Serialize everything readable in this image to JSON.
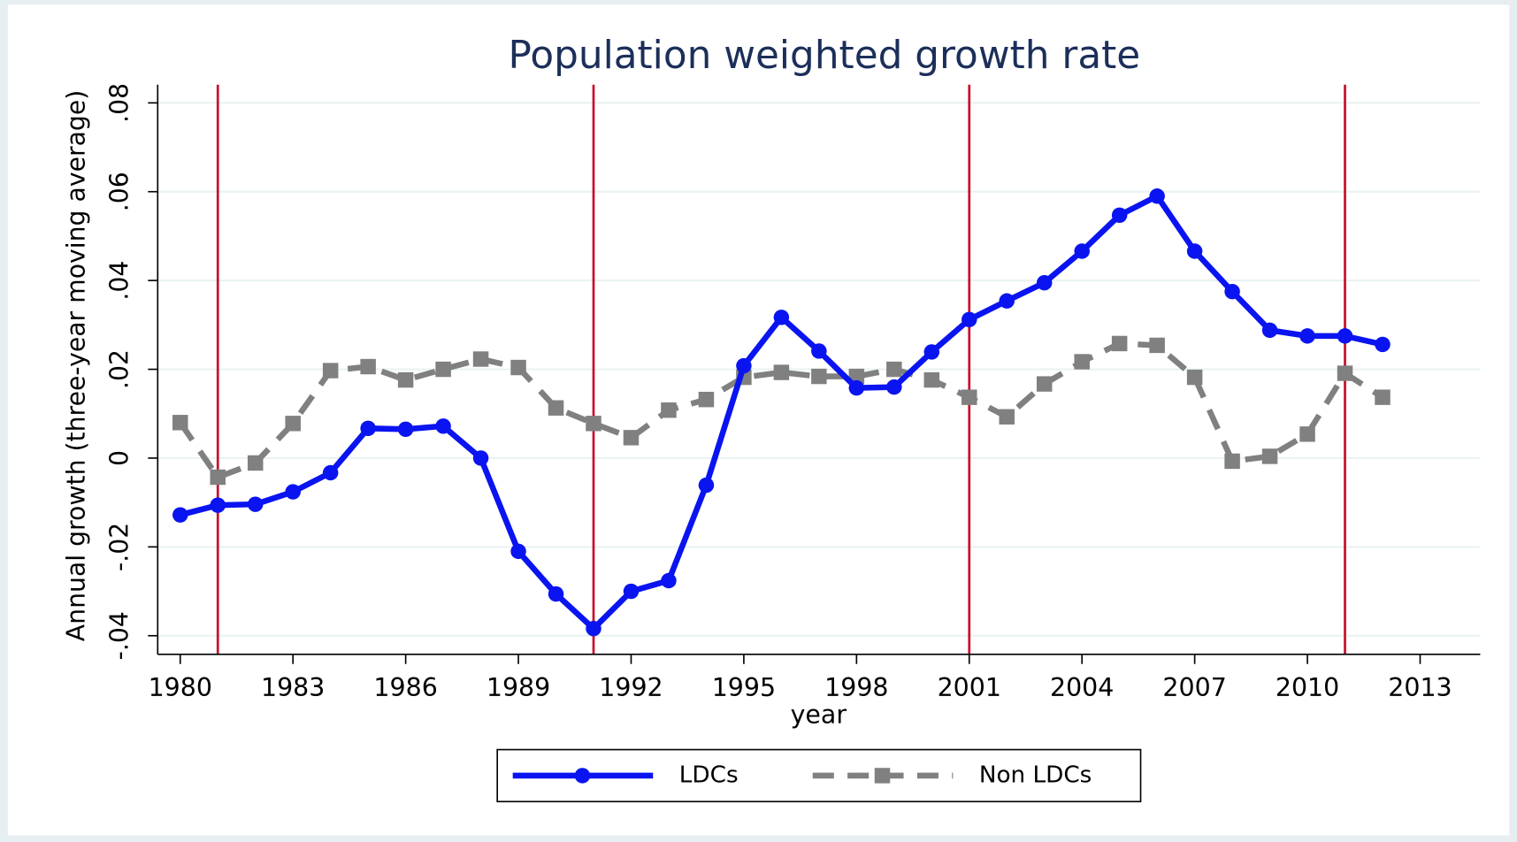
{
  "chart_data": {
    "type": "line",
    "title": "Population weighted growth rate",
    "x_label": "year",
    "y_label": "Annual growth (three-year moving average)",
    "x": [
      1980,
      1981,
      1982,
      1983,
      1984,
      1985,
      1986,
      1987,
      1988,
      1989,
      1990,
      1991,
      1992,
      1993,
      1994,
      1995,
      1996,
      1997,
      1998,
      1999,
      2000,
      2001,
      2002,
      2003,
      2004,
      2005,
      2006,
      2007,
      2008,
      2009,
      2010,
      2011,
      2012
    ],
    "series": [
      {
        "name": "LDCs",
        "color": "#0a14f0",
        "marker": "circle",
        "dash": false,
        "values": [
          -0.0128,
          -0.0106,
          -0.0104,
          -0.0076,
          -0.0033,
          0.0067,
          0.0065,
          0.0072,
          0.0,
          -0.021,
          -0.0306,
          -0.0384,
          -0.03,
          -0.0276,
          -0.0061,
          0.0208,
          0.0317,
          0.0241,
          0.0158,
          0.016,
          0.0239,
          0.0312,
          0.0354,
          0.0395,
          0.0466,
          0.0547,
          0.059,
          0.0466,
          0.0375,
          0.0288,
          0.0275,
          0.0275,
          0.0256
        ]
      },
      {
        "name": "Non LDCs",
        "color": "#808080",
        "marker": "square",
        "dash": true,
        "values": [
          0.008,
          -0.0043,
          -0.0011,
          0.0078,
          0.0197,
          0.0206,
          0.0176,
          0.02,
          0.0223,
          0.0204,
          0.0113,
          0.0078,
          0.0046,
          0.0108,
          0.0132,
          0.0182,
          0.0193,
          0.0184,
          0.0184,
          0.02,
          0.0176,
          0.0137,
          0.0093,
          0.0167,
          0.0217,
          0.0258,
          0.0254,
          0.0182,
          -0.0007,
          0.0004,
          0.0054,
          0.0191,
          0.0137
        ]
      }
    ],
    "xlim": [
      1979.4,
      2014.6
    ],
    "xticks": [
      1980,
      1983,
      1986,
      1989,
      1992,
      1995,
      1998,
      2001,
      2004,
      2007,
      2010,
      2013
    ],
    "ylim": [
      -0.0442,
      0.0841
    ],
    "yticks": [
      {
        "value": -0.04,
        "label": "-.04"
      },
      {
        "value": -0.02,
        "label": "-.02"
      },
      0,
      {
        "value": 0.02,
        "label": ".02"
      },
      {
        "value": 0.04,
        "label": ".04"
      },
      {
        "value": 0.06,
        "label": ".06"
      },
      {
        "value": 0.08,
        "label": ".08"
      }
    ],
    "grid": true,
    "vlines": [
      1981,
      1991,
      2001,
      2011
    ],
    "vline_color": "#c8102e",
    "legend": "bottom"
  }
}
